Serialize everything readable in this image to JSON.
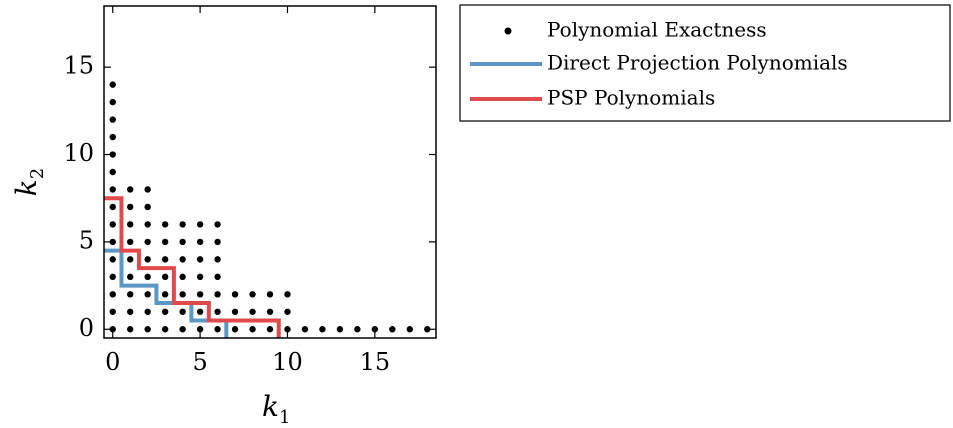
{
  "chart_data": {
    "type": "scatter",
    "title": "",
    "xlabel": "k",
    "xlabel_sub": "1",
    "ylabel": "k",
    "ylabel_sub": "2",
    "xlim": [
      -0.5,
      18.5
    ],
    "ylim": [
      -0.5,
      18.5
    ],
    "xticks": [
      0,
      5,
      10,
      15
    ],
    "yticks": [
      0,
      5,
      10,
      15
    ],
    "xtick_labels": [
      "0",
      "5",
      "10",
      "15"
    ],
    "ytick_labels": [
      "0",
      "5",
      "10",
      "15"
    ],
    "grid": false,
    "legend_position": "outside-right-top",
    "exactness_points": [
      [
        0,
        0
      ],
      [
        1,
        0
      ],
      [
        2,
        0
      ],
      [
        3,
        0
      ],
      [
        4,
        0
      ],
      [
        5,
        0
      ],
      [
        6,
        0
      ],
      [
        7,
        0
      ],
      [
        8,
        0
      ],
      [
        9,
        0
      ],
      [
        10,
        0
      ],
      [
        11,
        0
      ],
      [
        12,
        0
      ],
      [
        13,
        0
      ],
      [
        14,
        0
      ],
      [
        15,
        0
      ],
      [
        16,
        0
      ],
      [
        17,
        0
      ],
      [
        18,
        0
      ],
      [
        0,
        1
      ],
      [
        1,
        1
      ],
      [
        2,
        1
      ],
      [
        3,
        1
      ],
      [
        4,
        1
      ],
      [
        5,
        1
      ],
      [
        6,
        1
      ],
      [
        7,
        1
      ],
      [
        8,
        1
      ],
      [
        9,
        1
      ],
      [
        10,
        1
      ],
      [
        0,
        2
      ],
      [
        1,
        2
      ],
      [
        2,
        2
      ],
      [
        3,
        2
      ],
      [
        4,
        2
      ],
      [
        5,
        2
      ],
      [
        6,
        2
      ],
      [
        7,
        2
      ],
      [
        8,
        2
      ],
      [
        9,
        2
      ],
      [
        10,
        2
      ],
      [
        0,
        3
      ],
      [
        1,
        3
      ],
      [
        2,
        3
      ],
      [
        3,
        3
      ],
      [
        4,
        3
      ],
      [
        5,
        3
      ],
      [
        6,
        3
      ],
      [
        0,
        4
      ],
      [
        1,
        4
      ],
      [
        2,
        4
      ],
      [
        3,
        4
      ],
      [
        4,
        4
      ],
      [
        5,
        4
      ],
      [
        6,
        4
      ],
      [
        0,
        5
      ],
      [
        1,
        5
      ],
      [
        2,
        5
      ],
      [
        3,
        5
      ],
      [
        4,
        5
      ],
      [
        5,
        5
      ],
      [
        6,
        5
      ],
      [
        0,
        6
      ],
      [
        1,
        6
      ],
      [
        2,
        6
      ],
      [
        3,
        6
      ],
      [
        4,
        6
      ],
      [
        5,
        6
      ],
      [
        6,
        6
      ],
      [
        0,
        7
      ],
      [
        1,
        7
      ],
      [
        2,
        7
      ],
      [
        0,
        8
      ],
      [
        1,
        8
      ],
      [
        2,
        8
      ],
      [
        0,
        9
      ],
      [
        0,
        10
      ],
      [
        0,
        11
      ],
      [
        0,
        12
      ],
      [
        0,
        13
      ],
      [
        0,
        14
      ]
    ],
    "series": [
      {
        "name": "Polynomial Exactness",
        "kind": "points",
        "color": "#000000"
      },
      {
        "name": "Direct Projection Polynomials",
        "kind": "step-line",
        "color": "#5b98c5",
        "path": [
          [
            -0.5,
            4.5
          ],
          [
            0.5,
            4.5
          ],
          [
            0.5,
            2.5
          ],
          [
            2.5,
            2.5
          ],
          [
            2.5,
            1.5
          ],
          [
            4.5,
            1.5
          ],
          [
            4.5,
            0.5
          ],
          [
            6.5,
            0.5
          ],
          [
            6.5,
            -0.5
          ]
        ]
      },
      {
        "name": "PSP Polynomials",
        "kind": "step-line",
        "color": "#e04a4a",
        "path": [
          [
            -0.5,
            7.5
          ],
          [
            0.5,
            7.5
          ],
          [
            0.5,
            4.5
          ],
          [
            1.5,
            4.5
          ],
          [
            1.5,
            3.5
          ],
          [
            3.5,
            3.5
          ],
          [
            3.5,
            1.5
          ],
          [
            5.5,
            1.5
          ],
          [
            5.5,
            0.5
          ],
          [
            9.5,
            0.5
          ],
          [
            9.5,
            -0.5
          ]
        ]
      }
    ]
  }
}
